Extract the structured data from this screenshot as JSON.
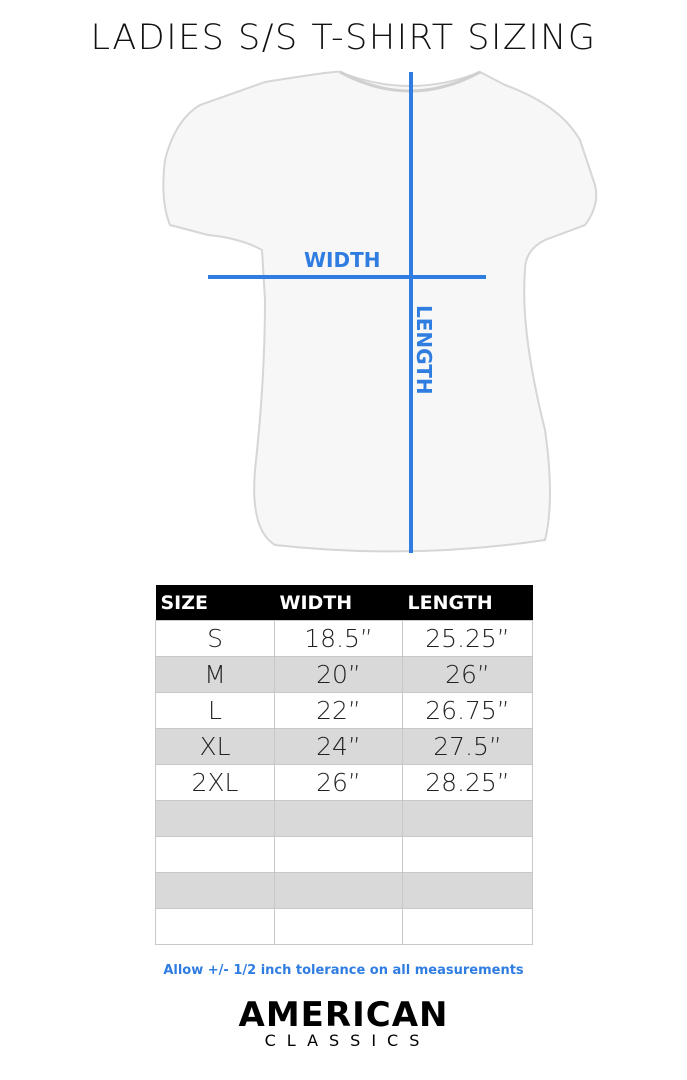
{
  "title": "LADIES S/S T-SHIRT SIZING",
  "diagram": {
    "width_label": "WIDTH",
    "length_label": "LENGTH",
    "line_color": "#2f7de1"
  },
  "table": {
    "headers": [
      "SIZE",
      "WIDTH",
      "LENGTH"
    ],
    "rows": [
      [
        "S",
        "18.5”",
        "25.25”"
      ],
      [
        "M",
        "20”",
        "26”"
      ],
      [
        "L",
        "22”",
        "26.75”"
      ],
      [
        "XL",
        "24”",
        "27.5”"
      ],
      [
        "2XL",
        "26”",
        "28.25”"
      ],
      [
        "",
        "",
        ""
      ],
      [
        "",
        "",
        ""
      ],
      [
        "",
        "",
        ""
      ],
      [
        "",
        "",
        ""
      ]
    ]
  },
  "note": "Allow +/- 1/2 inch tolerance on all measurements",
  "brand": {
    "line1": "AMERICAN",
    "line2": "CLASSICS"
  }
}
